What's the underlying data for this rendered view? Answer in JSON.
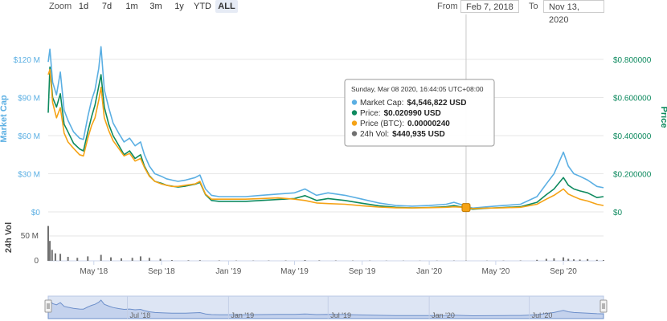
{
  "toolbar": {
    "zoom_label": "Zoom",
    "zoom_buttons": [
      "1d",
      "7d",
      "1m",
      "3m",
      "1y",
      "YTD",
      "ALL"
    ],
    "active_zoom": "ALL",
    "from_label": "From",
    "from_value": "Feb 7, 2018",
    "to_label": "To",
    "to_value": "Nov 13, 2020"
  },
  "colors": {
    "market_cap": "#5bafe3",
    "price": "#0e8a5f",
    "price_btc": "#f5a316",
    "volume": "#707070",
    "marker": "#f5a316"
  },
  "tooltip": {
    "header": "Sunday, Mar 08 2020, 16:44:05 UTC+08:00",
    "rows": [
      {
        "label": "Market Cap:",
        "value": "$4,546,822 USD",
        "color": "#5bafe3"
      },
      {
        "label": "Price:",
        "value": "$0.020990 USD",
        "color": "#0e8a5f"
      },
      {
        "label": "Price (BTC):",
        "value": "0.00000240",
        "color": "#f5a316"
      },
      {
        "label": "24h Vol:",
        "value": "$440,935 USD",
        "color": "#707070"
      }
    ]
  },
  "chart_data": {
    "type": "line",
    "x_unit": "date",
    "x_range": [
      "2018-02-07",
      "2020-11-13"
    ],
    "x_ticks": [
      "May '18",
      "Sep '18",
      "Jan '19",
      "May '19",
      "Sep '19",
      "Jan '20",
      "May '20",
      "Sep '20"
    ],
    "navigator_ticks": [
      "Jul '18",
      "Jan '19",
      "Jul '19",
      "Jan '20",
      "Jul '20"
    ],
    "left_axis": {
      "label": "Market Cap",
      "ticks": [
        "$0",
        "$30 M",
        "$60 M",
        "$90 M",
        "$120 M"
      ],
      "range": [
        0,
        120000000
      ]
    },
    "right_axis": {
      "label": "Price",
      "ticks": [
        "$0",
        "$0.200000",
        "$0.400000",
        "$0.600000",
        "$0.800000"
      ],
      "range": [
        0,
        0.8
      ]
    },
    "volume_axis": {
      "label": "24h Vol",
      "ticks": [
        "0",
        "50 M"
      ],
      "range": [
        0,
        50000000
      ]
    },
    "series": [
      {
        "name": "Market Cap",
        "axis": "left",
        "points": [
          [
            "2018-02-07",
            118000000
          ],
          [
            "2018-02-10",
            128000000
          ],
          [
            "2018-02-15",
            102000000
          ],
          [
            "2018-02-22",
            92000000
          ],
          [
            "2018-03-01",
            110000000
          ],
          [
            "2018-03-08",
            80000000
          ],
          [
            "2018-03-15",
            72000000
          ],
          [
            "2018-03-25",
            63000000
          ],
          [
            "2018-04-05",
            58000000
          ],
          [
            "2018-04-12",
            57000000
          ],
          [
            "2018-04-20",
            75000000
          ],
          [
            "2018-04-27",
            88000000
          ],
          [
            "2018-05-03",
            96000000
          ],
          [
            "2018-05-10",
            113000000
          ],
          [
            "2018-05-14",
            130000000
          ],
          [
            "2018-05-20",
            96000000
          ],
          [
            "2018-05-28",
            82000000
          ],
          [
            "2018-06-05",
            70000000
          ],
          [
            "2018-06-15",
            62000000
          ],
          [
            "2018-06-25",
            55000000
          ],
          [
            "2018-07-05",
            58000000
          ],
          [
            "2018-07-15",
            52000000
          ],
          [
            "2018-07-25",
            55000000
          ],
          [
            "2018-08-01",
            45000000
          ],
          [
            "2018-08-10",
            36000000
          ],
          [
            "2018-08-20",
            30000000
          ],
          [
            "2018-09-01",
            28000000
          ],
          [
            "2018-09-10",
            26000000
          ],
          [
            "2018-09-20",
            25000000
          ],
          [
            "2018-10-01",
            24000000
          ],
          [
            "2018-10-15",
            25000000
          ],
          [
            "2018-11-01",
            27000000
          ],
          [
            "2018-11-10",
            29000000
          ],
          [
            "2018-11-20",
            18000000
          ],
          [
            "2018-12-01",
            13000000
          ],
          [
            "2018-12-15",
            12000000
          ],
          [
            "2019-01-01",
            12000000
          ],
          [
            "2019-02-01",
            12000000
          ],
          [
            "2019-03-01",
            13000000
          ],
          [
            "2019-04-01",
            14000000
          ],
          [
            "2019-05-01",
            15000000
          ],
          [
            "2019-05-20",
            18000000
          ],
          [
            "2019-06-10",
            13000000
          ],
          [
            "2019-07-01",
            15000000
          ],
          [
            "2019-08-01",
            13000000
          ],
          [
            "2019-09-01",
            10000000
          ],
          [
            "2019-10-01",
            7000000
          ],
          [
            "2019-11-01",
            5000000
          ],
          [
            "2019-12-01",
            4500000
          ],
          [
            "2020-01-01",
            5000000
          ],
          [
            "2020-02-01",
            6000000
          ],
          [
            "2020-02-15",
            7500000
          ],
          [
            "2020-03-08",
            4546822
          ],
          [
            "2020-03-20",
            3000000
          ],
          [
            "2020-04-15",
            4000000
          ],
          [
            "2020-05-15",
            5000000
          ],
          [
            "2020-06-15",
            6000000
          ],
          [
            "2020-07-15",
            12000000
          ],
          [
            "2020-08-01",
            22000000
          ],
          [
            "2020-08-15",
            30000000
          ],
          [
            "2020-09-01",
            47000000
          ],
          [
            "2020-09-10",
            36000000
          ],
          [
            "2020-09-20",
            30000000
          ],
          [
            "2020-10-01",
            28000000
          ],
          [
            "2020-10-15",
            25000000
          ],
          [
            "2020-11-01",
            20000000
          ],
          [
            "2020-11-13",
            19000000
          ]
        ]
      },
      {
        "name": "Price",
        "axis": "right",
        "points": [
          [
            "2018-02-07",
            0.52
          ],
          [
            "2018-02-10",
            0.76
          ],
          [
            "2018-02-15",
            0.6
          ],
          [
            "2018-02-22",
            0.55
          ],
          [
            "2018-03-01",
            0.62
          ],
          [
            "2018-03-08",
            0.46
          ],
          [
            "2018-03-15",
            0.42
          ],
          [
            "2018-03-25",
            0.36
          ],
          [
            "2018-04-05",
            0.33
          ],
          [
            "2018-04-12",
            0.32
          ],
          [
            "2018-04-20",
            0.42
          ],
          [
            "2018-04-27",
            0.5
          ],
          [
            "2018-05-03",
            0.56
          ],
          [
            "2018-05-10",
            0.66
          ],
          [
            "2018-05-14",
            0.72
          ],
          [
            "2018-05-20",
            0.55
          ],
          [
            "2018-05-28",
            0.46
          ],
          [
            "2018-06-05",
            0.4
          ],
          [
            "2018-06-15",
            0.35
          ],
          [
            "2018-06-25",
            0.3
          ],
          [
            "2018-07-05",
            0.32
          ],
          [
            "2018-07-15",
            0.28
          ],
          [
            "2018-07-25",
            0.3
          ],
          [
            "2018-08-01",
            0.24
          ],
          [
            "2018-08-10",
            0.19
          ],
          [
            "2018-08-20",
            0.16
          ],
          [
            "2018-09-01",
            0.15
          ],
          [
            "2018-09-10",
            0.14
          ],
          [
            "2018-09-20",
            0.135
          ],
          [
            "2018-10-01",
            0.13
          ],
          [
            "2018-10-15",
            0.135
          ],
          [
            "2018-11-01",
            0.145
          ],
          [
            "2018-11-10",
            0.155
          ],
          [
            "2018-11-20",
            0.09
          ],
          [
            "2018-12-01",
            0.06
          ],
          [
            "2018-12-15",
            0.055
          ],
          [
            "2019-01-01",
            0.055
          ],
          [
            "2019-02-01",
            0.055
          ],
          [
            "2019-03-01",
            0.06
          ],
          [
            "2019-04-01",
            0.065
          ],
          [
            "2019-05-01",
            0.07
          ],
          [
            "2019-05-20",
            0.085
          ],
          [
            "2019-06-10",
            0.06
          ],
          [
            "2019-07-01",
            0.07
          ],
          [
            "2019-08-01",
            0.06
          ],
          [
            "2019-09-01",
            0.045
          ],
          [
            "2019-10-01",
            0.032
          ],
          [
            "2019-11-01",
            0.024
          ],
          [
            "2019-12-01",
            0.021
          ],
          [
            "2020-01-01",
            0.023
          ],
          [
            "2020-02-01",
            0.027
          ],
          [
            "2020-02-15",
            0.033
          ],
          [
            "2020-03-08",
            0.02099
          ],
          [
            "2020-03-20",
            0.014
          ],
          [
            "2020-04-15",
            0.019
          ],
          [
            "2020-05-15",
            0.023
          ],
          [
            "2020-06-15",
            0.027
          ],
          [
            "2020-07-15",
            0.05
          ],
          [
            "2020-08-01",
            0.09
          ],
          [
            "2020-08-15",
            0.12
          ],
          [
            "2020-09-01",
            0.18
          ],
          [
            "2020-09-10",
            0.14
          ],
          [
            "2020-09-20",
            0.12
          ],
          [
            "2020-10-01",
            0.11
          ],
          [
            "2020-10-15",
            0.1
          ],
          [
            "2020-11-01",
            0.075
          ],
          [
            "2020-11-13",
            0.08
          ]
        ]
      },
      {
        "name": "Price (BTC)",
        "axis": "left",
        "points": [
          [
            "2018-02-07",
            108000000
          ],
          [
            "2018-02-10",
            112000000
          ],
          [
            "2018-02-15",
            86000000
          ],
          [
            "2018-02-22",
            74000000
          ],
          [
            "2018-03-01",
            82000000
          ],
          [
            "2018-03-08",
            62000000
          ],
          [
            "2018-03-15",
            55000000
          ],
          [
            "2018-03-25",
            50000000
          ],
          [
            "2018-04-05",
            45000000
          ],
          [
            "2018-04-12",
            44000000
          ],
          [
            "2018-04-20",
            58000000
          ],
          [
            "2018-04-27",
            68000000
          ],
          [
            "2018-05-03",
            74000000
          ],
          [
            "2018-05-10",
            88000000
          ],
          [
            "2018-05-14",
            98000000
          ],
          [
            "2018-05-20",
            74000000
          ],
          [
            "2018-05-28",
            64000000
          ],
          [
            "2018-06-05",
            56000000
          ],
          [
            "2018-06-15",
            50000000
          ],
          [
            "2018-06-25",
            44000000
          ],
          [
            "2018-07-05",
            46000000
          ],
          [
            "2018-07-15",
            40000000
          ],
          [
            "2018-07-25",
            42000000
          ],
          [
            "2018-08-01",
            35000000
          ],
          [
            "2018-08-10",
            28000000
          ],
          [
            "2018-08-20",
            24000000
          ],
          [
            "2018-09-01",
            22000000
          ],
          [
            "2018-09-10",
            21000000
          ],
          [
            "2018-09-20",
            20000000
          ],
          [
            "2018-10-01",
            20000000
          ],
          [
            "2018-10-15",
            21000000
          ],
          [
            "2018-11-01",
            22000000
          ],
          [
            "2018-11-10",
            24000000
          ],
          [
            "2018-11-20",
            14000000
          ],
          [
            "2018-12-01",
            10000000
          ],
          [
            "2018-12-15",
            10000000
          ],
          [
            "2019-01-01",
            10000000
          ],
          [
            "2019-02-01",
            10000000
          ],
          [
            "2019-03-01",
            10500000
          ],
          [
            "2019-04-01",
            11000000
          ],
          [
            "2019-05-01",
            10000000
          ],
          [
            "2019-05-20",
            9000000
          ],
          [
            "2019-06-10",
            7000000
          ],
          [
            "2019-07-01",
            6500000
          ],
          [
            "2019-08-01",
            6000000
          ],
          [
            "2019-09-01",
            4800000
          ],
          [
            "2019-10-01",
            3800000
          ],
          [
            "2019-11-01",
            3200000
          ],
          [
            "2019-12-01",
            3100000
          ],
          [
            "2020-01-01",
            3300000
          ],
          [
            "2020-02-01",
            3600000
          ],
          [
            "2020-02-15",
            4000000
          ],
          [
            "2020-03-08",
            3400000
          ],
          [
            "2020-03-20",
            2600000
          ],
          [
            "2020-04-15",
            3000000
          ],
          [
            "2020-05-15",
            3200000
          ],
          [
            "2020-06-15",
            3600000
          ],
          [
            "2020-07-15",
            6000000
          ],
          [
            "2020-08-01",
            10000000
          ],
          [
            "2020-08-15",
            13000000
          ],
          [
            "2020-09-01",
            18000000
          ],
          [
            "2020-09-10",
            14000000
          ],
          [
            "2020-09-20",
            12000000
          ],
          [
            "2020-10-01",
            10000000
          ],
          [
            "2020-10-15",
            8500000
          ],
          [
            "2020-11-01",
            6000000
          ],
          [
            "2020-11-13",
            5000000
          ]
        ]
      },
      {
        "name": "24h Vol",
        "axis": "volume",
        "points": [
          [
            "2018-02-07",
            70000000
          ],
          [
            "2018-02-10",
            40000000
          ],
          [
            "2018-02-14",
            22000000
          ],
          [
            "2018-02-20",
            15000000
          ],
          [
            "2018-03-01",
            14000000
          ],
          [
            "2018-03-15",
            8000000
          ],
          [
            "2018-04-01",
            6000000
          ],
          [
            "2018-04-20",
            9000000
          ],
          [
            "2018-05-14",
            12000000
          ],
          [
            "2018-06-01",
            7000000
          ],
          [
            "2018-06-20",
            5000000
          ],
          [
            "2018-07-10",
            6000000
          ],
          [
            "2018-07-25",
            9000000
          ],
          [
            "2018-08-10",
            6000000
          ],
          [
            "2018-08-30",
            4000000
          ],
          [
            "2018-09-20",
            1500000
          ],
          [
            "2018-10-20",
            1000000
          ],
          [
            "2018-11-10",
            1200000
          ],
          [
            "2018-12-15",
            800000
          ],
          [
            "2019-01-15",
            600000
          ],
          [
            "2019-02-15",
            500000
          ],
          [
            "2019-03-15",
            600000
          ],
          [
            "2019-04-15",
            700000
          ],
          [
            "2019-05-20",
            1500000
          ],
          [
            "2019-06-15",
            900000
          ],
          [
            "2019-07-15",
            700000
          ],
          [
            "2019-08-15",
            600000
          ],
          [
            "2019-09-15",
            500000
          ],
          [
            "2019-10-15",
            400000
          ],
          [
            "2019-11-15",
            400000
          ],
          [
            "2019-12-15",
            350000
          ],
          [
            "2020-01-15",
            400000
          ],
          [
            "2020-02-15",
            500000
          ],
          [
            "2020-03-08",
            440935
          ],
          [
            "2020-04-15",
            400000
          ],
          [
            "2020-05-15",
            500000
          ],
          [
            "2020-06-15",
            700000
          ],
          [
            "2020-07-15",
            2000000
          ],
          [
            "2020-08-01",
            4000000
          ],
          [
            "2020-08-15",
            5000000
          ],
          [
            "2020-09-01",
            7000000
          ],
          [
            "2020-09-10",
            4000000
          ],
          [
            "2020-09-20",
            3000000
          ],
          [
            "2020-10-01",
            2500000
          ],
          [
            "2020-10-15",
            3500000
          ],
          [
            "2020-11-01",
            2000000
          ],
          [
            "2020-11-13",
            1500000
          ]
        ]
      }
    ],
    "marker_date": "2020-03-08"
  }
}
